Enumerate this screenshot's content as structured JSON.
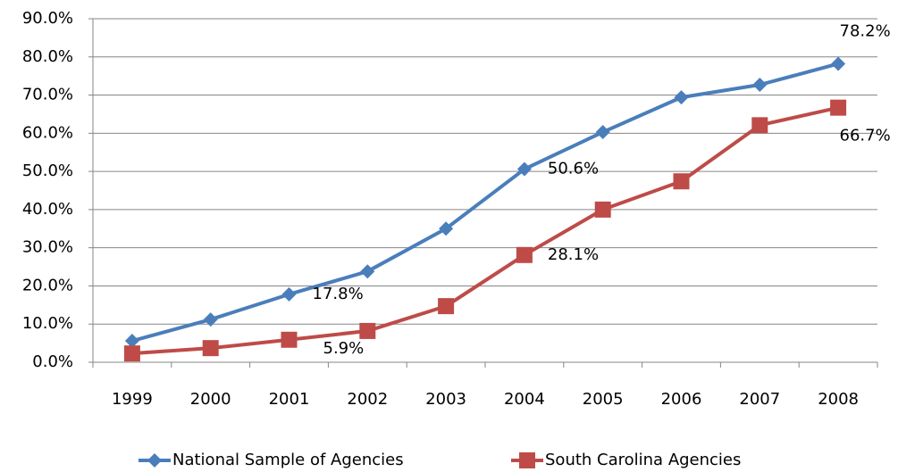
{
  "chart_data": {
    "type": "line",
    "categories": [
      "1999",
      "2000",
      "2001",
      "2002",
      "2003",
      "2004",
      "2005",
      "2006",
      "2007",
      "2008"
    ],
    "series": [
      {
        "name": "National Sample of Agencies",
        "color": "#4a7ebb",
        "marker": "diamond",
        "values": [
          5.6,
          11.2,
          17.8,
          23.8,
          35.0,
          50.6,
          60.3,
          69.4,
          72.7,
          78.2
        ],
        "value_labels": [
          null,
          null,
          "17.8%",
          null,
          null,
          "50.6%",
          null,
          null,
          null,
          "78.2%"
        ]
      },
      {
        "name": "South Carolina Agencies",
        "color": "#be4b48",
        "marker": "square",
        "values": [
          2.3,
          3.7,
          5.9,
          8.2,
          14.7,
          28.1,
          40.0,
          47.4,
          62.1,
          66.7
        ],
        "value_labels": [
          null,
          null,
          "5.9%",
          null,
          null,
          "28.1%",
          null,
          null,
          null,
          "66.7%"
        ]
      }
    ],
    "ylim": [
      0,
      90
    ],
    "yticks": [
      {
        "value": 0,
        "label": "0.0%"
      },
      {
        "value": 10,
        "label": "10.0%"
      },
      {
        "value": 20,
        "label": "20.0%"
      },
      {
        "value": 30,
        "label": "30.0%"
      },
      {
        "value": 40,
        "label": "40.0%"
      },
      {
        "value": 50,
        "label": "50.0%"
      },
      {
        "value": 60,
        "label": "60.0%"
      },
      {
        "value": 70,
        "label": "70.0%"
      },
      {
        "value": 80,
        "label": "80.0%"
      },
      {
        "value": 90,
        "label": "90.0%"
      }
    ],
    "grid": true,
    "legend": "bottom"
  }
}
